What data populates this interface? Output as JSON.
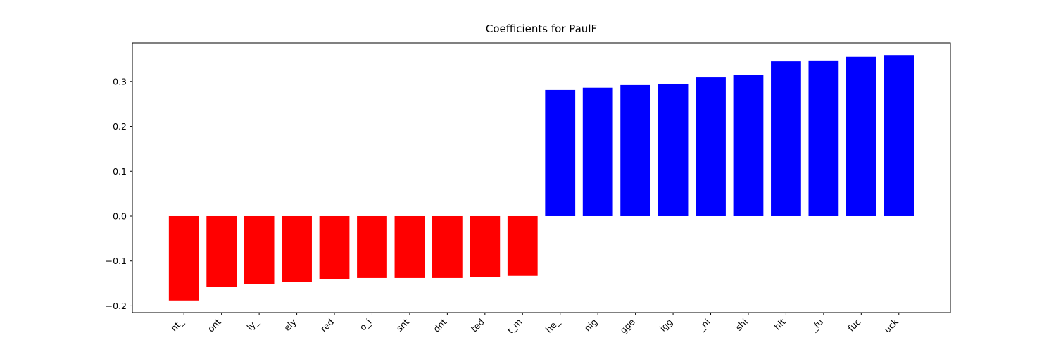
{
  "chart_data": {
    "type": "bar",
    "title": "Coefficients for PaulF",
    "categories": [
      "nt_",
      "ont",
      "ly_",
      "ely",
      "red",
      "o_i",
      "snt",
      "dnt",
      "ted",
      "t_m",
      "he_",
      "nig",
      "gge",
      "igg",
      "_ni",
      "shi",
      "hit",
      "_fu",
      "fuc",
      "uck"
    ],
    "values": [
      -0.188,
      -0.157,
      -0.152,
      -0.146,
      -0.14,
      -0.138,
      -0.138,
      -0.138,
      -0.135,
      -0.133,
      0.281,
      0.286,
      0.292,
      0.295,
      0.309,
      0.314,
      0.345,
      0.347,
      0.355,
      0.359
    ],
    "colors": [
      "#ff0000",
      "#ff0000",
      "#ff0000",
      "#ff0000",
      "#ff0000",
      "#ff0000",
      "#ff0000",
      "#ff0000",
      "#ff0000",
      "#ff0000",
      "#0000ff",
      "#0000ff",
      "#0000ff",
      "#0000ff",
      "#0000ff",
      "#0000ff",
      "#0000ff",
      "#0000ff",
      "#0000ff",
      "#0000ff"
    ],
    "ylim": [
      -0.215,
      0.386
    ],
    "yticks": [
      {
        "value": -0.2,
        "label": "−0.2"
      },
      {
        "value": -0.1,
        "label": "−0.1"
      },
      {
        "value": 0,
        "label": "0.0"
      },
      0.1,
      0.2,
      0.3
    ],
    "grid": false
  }
}
